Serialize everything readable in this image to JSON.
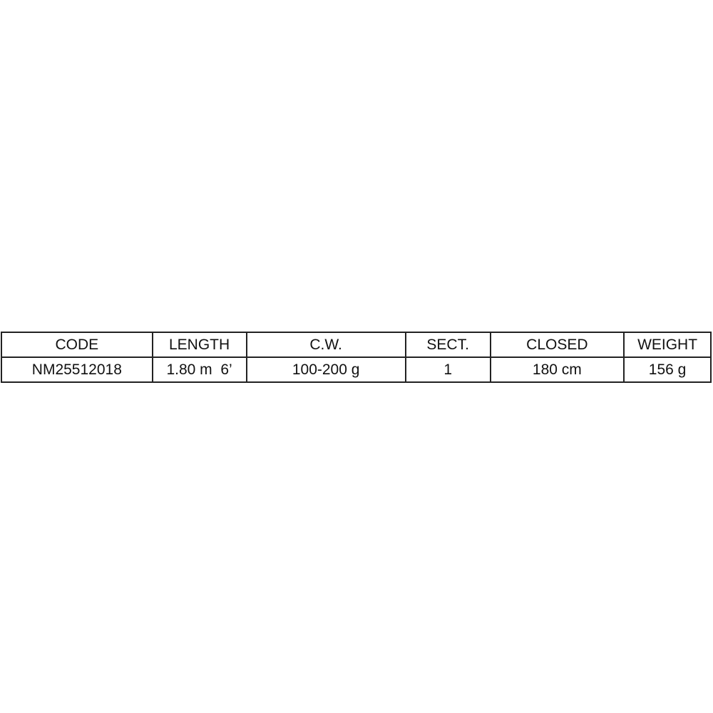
{
  "table": {
    "headers": [
      "CODE",
      "LENGTH",
      "C.W.",
      "SECT.",
      "CLOSED",
      "WEIGHT"
    ],
    "rows": [
      [
        "NM25512018",
        "1.80 m  6’",
        "100-200 g",
        "1",
        "180 cm",
        "156 g"
      ]
    ]
  }
}
